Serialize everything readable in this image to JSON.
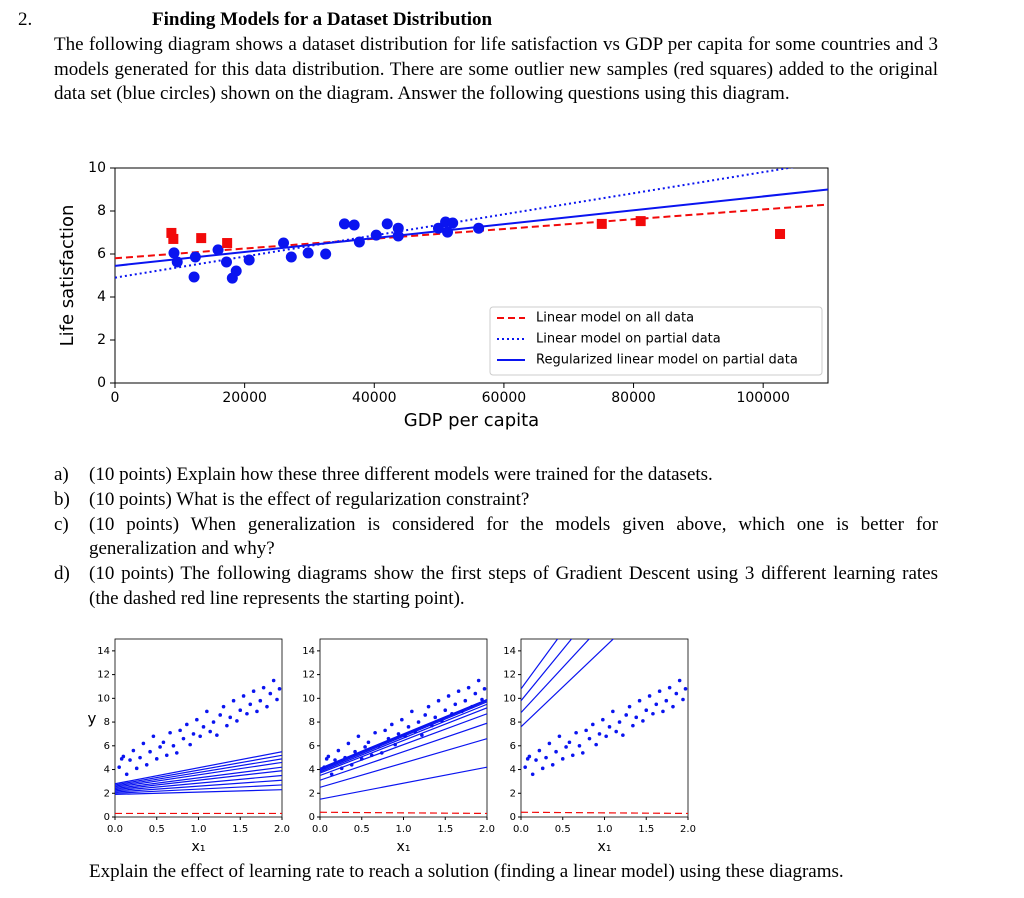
{
  "question_number": "2.",
  "title": "Finding Models for a Dataset Distribution",
  "intro": "The following diagram shows a dataset distribution for life satisfaction vs GDP per capita for some countries and 3 models generated for this data distribution. There are some outlier new samples (red squares) added to the original data set (blue circles) shown on the diagram. Answer the following questions using this diagram.",
  "figure1": {
    "type": "scatter",
    "xlabel": "GDP per capita",
    "ylabel": "Life satisfaction",
    "xlim": [
      0,
      110000
    ],
    "ylim": [
      0,
      10
    ],
    "xticks": [
      0,
      20000,
      40000,
      60000,
      80000,
      100000
    ],
    "yticks": [
      0,
      2,
      4,
      6,
      8,
      10
    ],
    "legend": "lower right",
    "points": [
      {
        "marker": "circle",
        "color": "#0a14f0",
        "x": [
          9100,
          9600,
          12400,
          12200,
          15900,
          17200,
          18100,
          18700,
          20700,
          26000,
          27200,
          29800,
          32500,
          35400,
          36900,
          37700,
          40300,
          42000,
          43700,
          43700,
          49900,
          51000,
          52100,
          51300,
          56100
        ],
        "y": [
          6.05,
          5.63,
          5.86,
          4.93,
          6.19,
          5.63,
          4.88,
          5.21,
          5.72,
          6.51,
          5.86,
          6.05,
          6.0,
          7.4,
          7.35,
          6.56,
          6.88,
          7.4,
          7.2,
          6.84,
          7.2,
          7.49,
          7.44,
          7.02,
          7.2
        ]
      },
      {
        "marker": "square",
        "color": "#f20a0a",
        "x": [
          8700,
          9000,
          13300,
          17300,
          75100,
          81100,
          102600
        ],
        "y": [
          6.98,
          6.7,
          6.74,
          6.51,
          7.4,
          7.53,
          6.93
        ]
      }
    ],
    "lines": [
      {
        "name": "Linear model on all data",
        "color": "#f20a0a",
        "style": "dashed",
        "x": [
          0,
          110000
        ],
        "y": [
          5.8,
          8.3
        ]
      },
      {
        "name": "Linear model on partial data",
        "color": "#0a14f0",
        "style": "dotted",
        "x": [
          0,
          110000
        ],
        "y": [
          4.9,
          10.3
        ]
      },
      {
        "name": "Regularized linear model on partial data",
        "color": "#0a14f0",
        "style": "solid",
        "x": [
          0,
          110000
        ],
        "y": [
          5.45,
          9.0
        ]
      }
    ]
  },
  "questions": [
    {
      "label": "a)",
      "text": "(10 points) Explain how these three different models were trained for the datasets."
    },
    {
      "label": "b)",
      "text": "(10 points) What is the effect of regularization constraint?"
    },
    {
      "label": "c)",
      "text": "(10 points) When generalization is considered for the models given above, which one is better for generalization and why?"
    },
    {
      "label": "d)",
      "text": "(10 points) The following diagrams show the first steps of Gradient Descent using 3 different learning rates (the dashed red line represents the starting point)."
    }
  ],
  "figure2": {
    "type": "line",
    "xlabel": "x₁",
    "ylabel": "y",
    "xlim": [
      0,
      2
    ],
    "ylim": [
      0,
      15
    ],
    "xticks": [
      {
        "value": 0,
        "label": "0.0"
      },
      {
        "value": 0.5,
        "label": "0.5"
      },
      {
        "value": 1,
        "label": "1.0"
      },
      {
        "value": 1.5,
        "label": "1.5"
      },
      {
        "value": 2,
        "label": "2.0"
      }
    ],
    "yticks": [
      0,
      2,
      4,
      6,
      8,
      10,
      12,
      14
    ],
    "points": {
      "color": "#0a14f0",
      "x": [
        0.05,
        0.1,
        0.14,
        0.18,
        0.22,
        0.26,
        0.3,
        0.34,
        0.38,
        0.42,
        0.46,
        0.5,
        0.54,
        0.58,
        0.62,
        0.66,
        0.7,
        0.74,
        0.78,
        0.82,
        0.86,
        0.9,
        0.94,
        0.98,
        1.02,
        1.06,
        1.1,
        1.14,
        1.18,
        1.22,
        1.26,
        1.3,
        1.34,
        1.38,
        1.42,
        1.46,
        1.5,
        1.54,
        1.58,
        1.62,
        1.66,
        1.7,
        1.74,
        1.78,
        1.82,
        1.86,
        1.9,
        1.94,
        1.97,
        0.08
      ],
      "y": [
        4.2,
        5.1,
        3.6,
        4.8,
        5.6,
        4.1,
        5.0,
        6.2,
        4.4,
        5.5,
        6.8,
        4.9,
        5.9,
        6.3,
        5.2,
        7.1,
        6.0,
        5.4,
        7.3,
        6.6,
        7.8,
        6.1,
        7.0,
        8.2,
        6.8,
        7.6,
        8.9,
        7.2,
        8.0,
        6.9,
        8.6,
        9.3,
        7.7,
        8.4,
        9.8,
        8.1,
        9.0,
        10.2,
        8.7,
        9.5,
        10.6,
        8.9,
        9.8,
        10.9,
        9.3,
        10.4,
        11.5,
        9.9,
        10.8,
        4.9
      ]
    },
    "line_x": [
      0,
      2
    ],
    "panels": [
      {
        "start": {
          "color": "#f20a0a",
          "style": "dashed",
          "y": [
            0.3,
            0.3
          ]
        },
        "lines": {
          "color": "#0a14f0",
          "y": [
            [
              1.9,
              2.3
            ],
            [
              2.0,
              2.7
            ],
            [
              2.1,
              3.1
            ],
            [
              2.2,
              3.5
            ],
            [
              2.3,
              3.9
            ],
            [
              2.4,
              4.2
            ],
            [
              2.5,
              4.6
            ],
            [
              2.6,
              4.9
            ],
            [
              2.7,
              5.2
            ],
            [
              2.8,
              5.5
            ]
          ]
        }
      },
      {
        "start": {
          "color": "#f20a0a",
          "style": "dashed",
          "y": [
            0.4,
            0.3
          ]
        },
        "lines": {
          "color": "#0a14f0",
          "y": [
            [
              1.5,
              4.2
            ],
            [
              2.5,
              6.6
            ],
            [
              3.1,
              7.9
            ],
            [
              3.5,
              8.7
            ],
            [
              3.7,
              9.2
            ],
            [
              3.8,
              9.5
            ],
            [
              3.9,
              9.7
            ],
            [
              4.0,
              9.8
            ],
            [
              4.0,
              9.9
            ],
            [
              4.1,
              9.9
            ]
          ]
        }
      },
      {
        "start": {
          "color": "#f20a0a",
          "style": "dashed",
          "y": [
            0.4,
            0.3
          ]
        },
        "lines": {
          "color": "#0a14f0",
          "y": [
            [
              7.6,
              21
            ],
            [
              8.8,
              24
            ],
            [
              9.8,
              27
            ],
            [
              10.8,
              30
            ]
          ]
        }
      }
    ]
  },
  "closing": "Explain the effect of learning rate to reach a solution (finding a linear model) using these diagrams."
}
